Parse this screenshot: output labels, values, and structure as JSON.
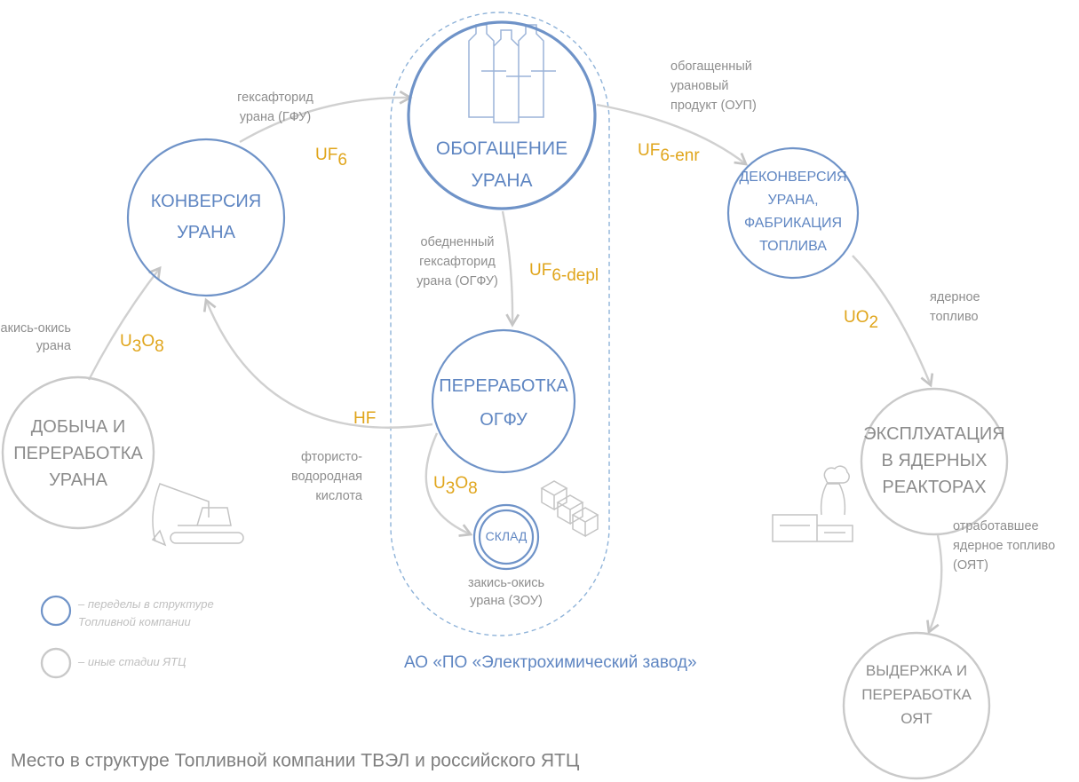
{
  "title": "Место в структуре Топливной компании ТВЭЛ и российского ЯТЦ",
  "plant_label": "АО «ПО «Электрохимический завод»",
  "legend": [
    {
      "lines": [
        "– переделы в структуре",
        "Топливной компании"
      ]
    },
    {
      "lines": [
        "– иные стадии ЯТЦ"
      ]
    }
  ],
  "nodes": [
    {
      "lines": [
        "ДОБЫЧА И",
        "ПЕРЕРАБОТКА",
        "УРАНА"
      ]
    },
    {
      "lines": [
        "КОНВЕРСИЯ",
        "УРАНА"
      ]
    },
    {
      "lines": [
        "ОБОГАЩЕНИЕ",
        "УРАНА"
      ]
    },
    {
      "lines": [
        "ДЕКОНВЕРСИЯ",
        "УРАНА,",
        "ФАБРИКАЦИЯ",
        "ТОПЛИВА"
      ]
    },
    {
      "lines": [
        "ПЕРЕРАБОТКА",
        "ОГФУ"
      ]
    },
    {
      "lines": [
        "СКЛАД"
      ]
    },
    {
      "lines": [
        "ЭКСПЛУАТАЦИЯ",
        "В ЯДЕРНЫХ",
        "РЕАКТОРАХ"
      ]
    },
    {
      "lines": [
        "ВЫДЕРЖКА И",
        "ПЕРЕРАБОТКА",
        "ОЯТ"
      ]
    }
  ],
  "flows": [
    {
      "label_lines": [
        "закись-окись",
        "урана"
      ],
      "formula": [
        {
          "text": "U"
        },
        {
          "text": "3",
          "sub": true
        },
        {
          "text": "O"
        },
        {
          "text": "8",
          "sub": true
        }
      ]
    },
    {
      "label_lines": [
        "гексафторид",
        "урана (ГФУ)"
      ],
      "formula": [
        {
          "text": "UF"
        },
        {
          "text": "6",
          "sub": true
        }
      ]
    },
    {
      "label_lines": [
        "обогащенный",
        "урановый",
        "продукт (ОУП)"
      ],
      "formula": [
        {
          "text": "UF"
        },
        {
          "text": "6-enr",
          "sub": true
        }
      ]
    },
    {
      "label_lines": [
        "обедненный",
        "гексафторид",
        "урана (ОГФУ)"
      ],
      "formula": [
        {
          "text": "UF"
        },
        {
          "text": "6-depl",
          "sub": true
        }
      ]
    },
    {
      "label_lines": [
        "фтористо-",
        "водородная",
        "кислота"
      ],
      "formula": [
        {
          "text": "HF"
        }
      ]
    },
    {
      "label_lines": [
        "закись-окись",
        "урана (ЗОУ)"
      ],
      "formula": [
        {
          "text": "U"
        },
        {
          "text": "3",
          "sub": true
        },
        {
          "text": "O"
        },
        {
          "text": "8",
          "sub": true
        }
      ]
    },
    {
      "label_lines": [
        "ядерное",
        "топливо"
      ],
      "formula": [
        {
          "text": "UO"
        },
        {
          "text": "2",
          "sub": true
        }
      ]
    },
    {
      "label_lines": [
        "отработавшее",
        "ядерное топливо",
        "(ОЯТ)"
      ],
      "formula": []
    }
  ]
}
